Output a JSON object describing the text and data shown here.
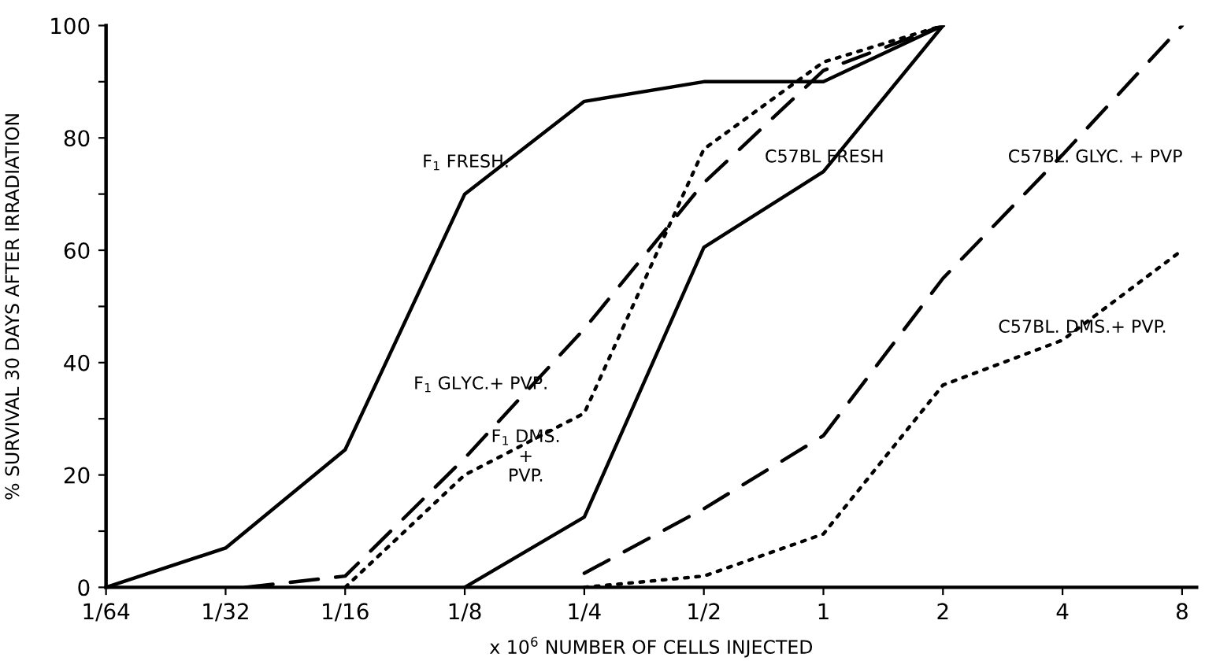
{
  "chart_data": {
    "type": "line",
    "xlabel": "x 10$^{6}$ NUMBER OF CELLS INJECTED",
    "ylabel": "% SURVIVAL 30 DAYS AFTER IRRADIATION",
    "log": "x",
    "grid": false,
    "legend": false,
    "marker": "none",
    "xlim": [
      0.015625,
      8.7
    ],
    "ylim": [
      0,
      100
    ],
    "xticks": [
      {
        "value": 0.015625,
        "label": "1/64"
      },
      {
        "value": 0.03125,
        "label": "1/32"
      },
      {
        "value": 0.0625,
        "label": "1/16"
      },
      {
        "value": 0.125,
        "label": "1/8"
      },
      {
        "value": 0.25,
        "label": "1/4"
      },
      {
        "value": 0.5,
        "label": "1/2"
      },
      1,
      2,
      4,
      8
    ],
    "yticks": [
      0,
      {
        "value": 10,
        "label": null
      },
      20,
      {
        "value": 30,
        "label": null
      },
      40,
      {
        "value": 50,
        "label": null
      },
      60,
      {
        "value": 70,
        "label": null
      },
      80,
      {
        "value": 90,
        "label": null
      },
      100
    ],
    "series": [
      {
        "color": "#000000",
        "line_style": "solid",
        "x": [
          0.015625,
          0.03125,
          0.0625,
          0.125,
          0.25,
          0.5,
          1,
          2
        ],
        "values": [
          0,
          7,
          24.5,
          70,
          86.5,
          90,
          90,
          100
        ]
      },
      {
        "color": "#000000",
        "line_style": "dashed",
        "x": [
          0.035,
          0.0625,
          0.125,
          0.25,
          0.5,
          1,
          2
        ],
        "values": [
          0,
          2,
          23,
          46,
          72,
          92,
          100
        ]
      },
      {
        "color": "#000000",
        "line_style": "dotted",
        "x": [
          0.0625,
          0.125,
          0.25,
          0.5,
          1,
          2
        ],
        "values": [
          0,
          20,
          31,
          78,
          93.5,
          100
        ]
      },
      {
        "color": "#000000",
        "line_style": "solid",
        "x": [
          0.125,
          0.25,
          0.5,
          1,
          2
        ],
        "values": [
          0,
          12.5,
          60.5,
          74,
          100
        ]
      },
      {
        "color": "#000000",
        "line_style": "dashed",
        "x": [
          0.25,
          0.5,
          1,
          2,
          4,
          8
        ],
        "values": [
          2.5,
          14,
          27,
          55,
          77,
          100
        ]
      },
      {
        "color": "#000000",
        "line_style": "dotted",
        "x": [
          0.25,
          0.5,
          1,
          2,
          4,
          8
        ],
        "values": [
          0,
          2,
          9.5,
          36,
          44,
          60
        ]
      }
    ],
    "annotations": [
      "F$_{1}$ FRESH.",
      "F$_{1}$ GLYC.+ PVP.",
      "F$_{1}$ DMS.\n+\nPVP.",
      "C57BL FRESH",
      "C57BL. GLYC. + PVP",
      "C57BL. DMS.+ PVP."
    ]
  }
}
